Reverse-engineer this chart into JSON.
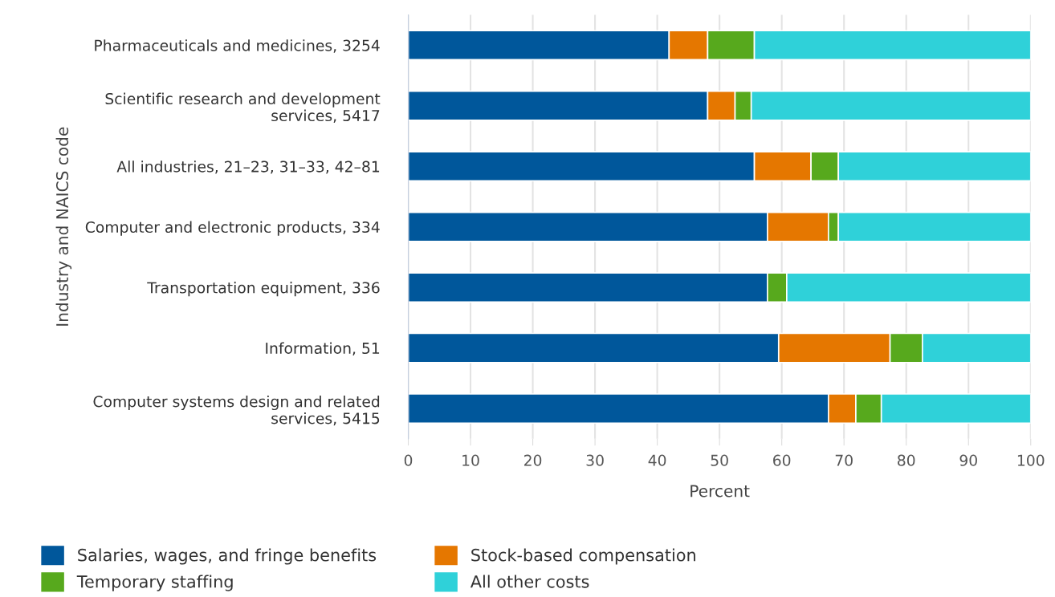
{
  "chart_data": {
    "type": "bar",
    "orientation": "horizontal",
    "stacked": true,
    "categories": [
      "Pharmaceuticals and medicines, 3254",
      "Scientific research and development\nservices, 5417",
      "All industries, 21–23, 31–33, 42–81",
      "Computer and electronic products, 334",
      "Transportation equipment, 336",
      "Information, 51",
      "Computer systems design and related\nservices, 5415"
    ],
    "series": [
      {
        "name": "Salaries, wages, and fringe benefits",
        "color": "#00579b",
        "values": [
          41.9,
          48.1,
          55.6,
          57.7,
          57.7,
          59.5,
          67.5
        ]
      },
      {
        "name": "Stock-based compensation",
        "color": "#e57700",
        "values": [
          6.2,
          4.4,
          9.1,
          9.8,
          null,
          17.9,
          4.4
        ]
      },
      {
        "name": "Temporary staffing",
        "color": "#57a91d",
        "values": [
          7.5,
          2.6,
          4.4,
          1.6,
          3.1,
          5.2,
          4.1
        ]
      },
      {
        "name": "All other costs",
        "color": "#2fd1d9",
        "values": [
          44.4,
          44.9,
          30.9,
          30.9,
          39.2,
          17.4,
          24.0
        ]
      }
    ],
    "xlabel": "Percent",
    "ylabel": "Industry and NAICS code",
    "xlim": [
      0,
      100
    ],
    "xticks": [
      0,
      10,
      20,
      30,
      40,
      50,
      60,
      70,
      80,
      90,
      100
    ],
    "grid": "x",
    "legend": "bottom"
  }
}
